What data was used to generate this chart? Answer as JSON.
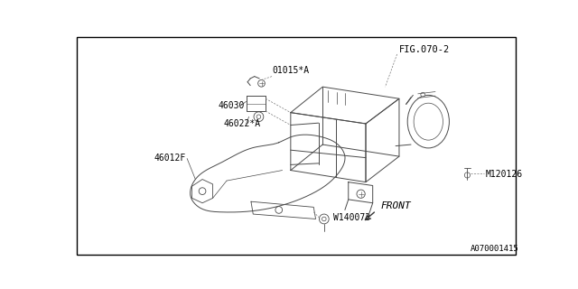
{
  "background_color": "#ffffff",
  "border_color": "#000000",
  "line_color": "#4a4a4a",
  "text_color": "#000000",
  "fig_ref": "FIG.070-2",
  "part_number_bottom": "A070001415",
  "labels": {
    "01015A": "01015*A",
    "46030": "46030",
    "46022A": "46022*A",
    "46012F": "46012F",
    "M120126": "M120126",
    "W140073": "W140073",
    "FRONT": "FRONT"
  },
  "font_size_labels": 7,
  "font_size_ref": 7.5,
  "font_size_bottom": 6.5
}
